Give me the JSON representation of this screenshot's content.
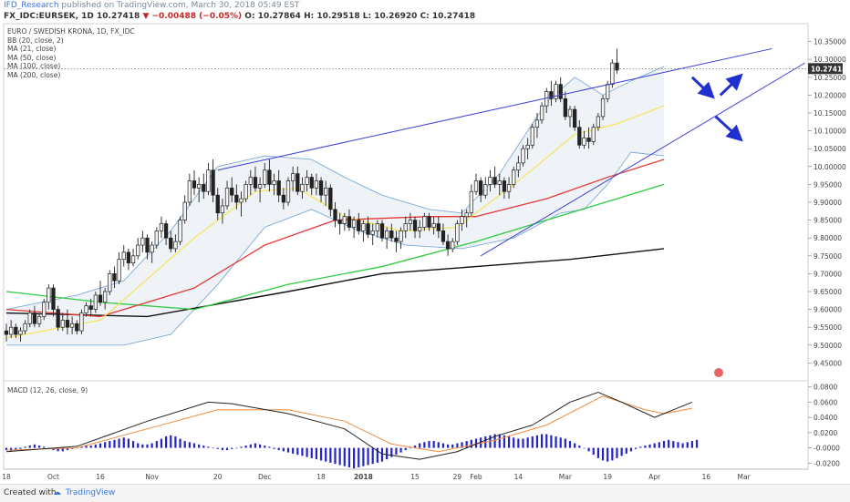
{
  "header": {
    "line1": {
      "user": "IFD_Research",
      "rest": "published on TradingView.com, March 30, 2018 05:49 EST"
    },
    "line2": {
      "symbol": "FX_IDC:EURSEK, 1D",
      "price": "10.27418",
      "change": "▼ −0.00488 (−0.05%)",
      "ohlc": "O: 10.27864  H: 10.29518  L: 10.26920  C: 10.27418"
    }
  },
  "legend": [
    "EURO / SWEDISH KRONA, 1D, FX_IDC",
    "BB (20, close, 2)",
    "MA (21, close)",
    "MA (50, close)",
    "MA (100, close)",
    "MA (200, close)"
  ],
  "macd_legend": "MACD (12, 26, close, 9)",
  "footer": {
    "created": "Created with",
    "brand": "TradingView"
  },
  "colors": {
    "up": "#f5f5f5",
    "down": "#222222",
    "bb": "#7eaad6",
    "ma21": "#f5e65b",
    "ma50": "#e53935",
    "ma100": "#2ecc40",
    "ma200": "#111111",
    "trend": "#3b3fd6",
    "arrow": "#1f2fd0",
    "macd": "#222222",
    "signal": "#f08c3c",
    "hist": "#2323c8"
  },
  "chart_data": {
    "type": "candlestick",
    "last_price": "10.27418",
    "y_axis": {
      "min": 9.4,
      "max": 10.4,
      "ticks": [
        "10.35000",
        "10.30000",
        "10.25000",
        "10.20000",
        "10.15000",
        "10.10000",
        "10.05000",
        "10.00000",
        "9.95000",
        "9.90000",
        "9.85000",
        "9.80000",
        "9.75000",
        "9.70000",
        "9.65000",
        "9.60000",
        "9.55000",
        "9.50000",
        "9.45000"
      ]
    },
    "macd_axis": {
      "min": -0.028,
      "max": 0.088,
      "ticks": [
        "0.0800",
        "0.0600",
        "0.0400",
        "0.0200",
        "-0.0000",
        "-0.0200"
      ]
    },
    "x_labels": [
      {
        "i": 0,
        "t": "18"
      },
      {
        "i": 10,
        "t": "Oct"
      },
      {
        "i": 20,
        "t": "16"
      },
      {
        "i": 31,
        "t": "Nov"
      },
      {
        "i": 45,
        "t": "20"
      },
      {
        "i": 55,
        "t": "Dec"
      },
      {
        "i": 67,
        "t": "18"
      },
      {
        "i": 76,
        "t": "2018"
      },
      {
        "i": 87,
        "t": "15"
      },
      {
        "i": 96,
        "t": "29"
      },
      {
        "i": 100,
        "t": "Feb"
      },
      {
        "i": 109,
        "t": "14"
      },
      {
        "i": 119,
        "t": "Mar"
      },
      {
        "i": 128,
        "t": "19"
      },
      {
        "i": 138,
        "t": "Apr"
      },
      {
        "i": 149,
        "t": "16"
      },
      {
        "i": 157,
        "t": "Mar"
      }
    ],
    "candles": [
      [
        9.54,
        9.56,
        9.51,
        9.53
      ],
      [
        9.53,
        9.57,
        9.52,
        9.55
      ],
      [
        9.55,
        9.56,
        9.52,
        9.53
      ],
      [
        9.53,
        9.55,
        9.51,
        9.54
      ],
      [
        9.54,
        9.57,
        9.53,
        9.56
      ],
      [
        9.56,
        9.6,
        9.55,
        9.59
      ],
      [
        9.59,
        9.61,
        9.55,
        9.56
      ],
      [
        9.56,
        9.59,
        9.55,
        9.58
      ],
      [
        9.58,
        9.63,
        9.57,
        9.62
      ],
      [
        9.62,
        9.67,
        9.6,
        9.66
      ],
      [
        9.66,
        9.67,
        9.58,
        9.6
      ],
      [
        9.6,
        9.61,
        9.54,
        9.55
      ],
      [
        9.55,
        9.59,
        9.54,
        9.57
      ],
      [
        9.57,
        9.6,
        9.53,
        9.55
      ],
      [
        9.55,
        9.58,
        9.53,
        9.56
      ],
      [
        9.56,
        9.57,
        9.53,
        9.54
      ],
      [
        9.54,
        9.6,
        9.53,
        9.59
      ],
      [
        9.59,
        9.62,
        9.58,
        9.61
      ],
      [
        9.61,
        9.63,
        9.58,
        9.6
      ],
      [
        9.6,
        9.65,
        9.59,
        9.64
      ],
      [
        9.64,
        9.68,
        9.61,
        9.62
      ],
      [
        9.62,
        9.66,
        9.6,
        9.65
      ],
      [
        9.65,
        9.71,
        9.64,
        9.7
      ],
      [
        9.7,
        9.72,
        9.66,
        9.68
      ],
      [
        9.68,
        9.76,
        9.67,
        9.74
      ],
      [
        9.74,
        9.78,
        9.72,
        9.76
      ],
      [
        9.76,
        9.77,
        9.71,
        9.73
      ],
      [
        9.73,
        9.77,
        9.72,
        9.75
      ],
      [
        9.75,
        9.8,
        9.74,
        9.78
      ],
      [
        9.78,
        9.82,
        9.76,
        9.8
      ],
      [
        9.8,
        9.81,
        9.74,
        9.76
      ],
      [
        9.76,
        9.79,
        9.73,
        9.78
      ],
      [
        9.78,
        9.83,
        9.77,
        9.82
      ],
      [
        9.82,
        9.86,
        9.8,
        9.84
      ],
      [
        9.84,
        9.85,
        9.78,
        9.8
      ],
      [
        9.8,
        9.82,
        9.76,
        9.77
      ],
      [
        9.77,
        9.81,
        9.76,
        9.79
      ],
      [
        9.79,
        9.86,
        9.78,
        9.85
      ],
      [
        9.85,
        9.92,
        9.84,
        9.9
      ],
      [
        9.9,
        9.98,
        9.89,
        9.96
      ],
      [
        9.96,
        9.99,
        9.92,
        9.94
      ],
      [
        9.94,
        9.97,
        9.9,
        9.95
      ],
      [
        9.95,
        9.98,
        9.91,
        9.93
      ],
      [
        9.93,
        10.01,
        9.92,
        9.99
      ],
      [
        9.99,
        10.02,
        9.9,
        9.92
      ],
      [
        9.92,
        9.94,
        9.85,
        9.87
      ],
      [
        9.87,
        9.91,
        9.84,
        9.89
      ],
      [
        9.89,
        9.96,
        9.88,
        9.94
      ],
      [
        9.94,
        9.97,
        9.9,
        9.92
      ],
      [
        9.92,
        9.95,
        9.88,
        9.9
      ],
      [
        9.9,
        9.93,
        9.86,
        9.91
      ],
      [
        9.91,
        9.96,
        9.9,
        9.95
      ],
      [
        9.95,
        9.99,
        9.92,
        9.97
      ],
      [
        9.97,
        10.0,
        9.93,
        9.94
      ],
      [
        9.94,
        9.97,
        9.9,
        9.95
      ],
      [
        9.95,
        10.01,
        9.94,
        9.99
      ],
      [
        9.99,
        10.02,
        9.93,
        9.95
      ],
      [
        9.95,
        9.98,
        9.92,
        9.96
      ],
      [
        9.96,
        9.99,
        9.9,
        9.92
      ],
      [
        9.92,
        9.94,
        9.88,
        9.9
      ],
      [
        9.9,
        9.97,
        9.89,
        9.96
      ],
      [
        9.96,
        10.0,
        9.93,
        9.98
      ],
      [
        9.98,
        10.0,
        9.92,
        9.93
      ],
      [
        9.93,
        9.97,
        9.91,
        9.95
      ],
      [
        9.95,
        9.99,
        9.93,
        9.97
      ],
      [
        9.97,
        9.98,
        9.92,
        9.94
      ],
      [
        9.94,
        9.98,
        9.92,
        9.96
      ],
      [
        9.96,
        9.97,
        9.9,
        9.92
      ],
      [
        9.92,
        9.96,
        9.89,
        9.94
      ],
      [
        9.94,
        9.95,
        9.86,
        9.88
      ],
      [
        9.88,
        9.9,
        9.83,
        9.85
      ],
      [
        9.85,
        9.87,
        9.81,
        9.84
      ],
      [
        9.84,
        9.87,
        9.82,
        9.86
      ],
      [
        9.86,
        9.88,
        9.82,
        9.83
      ],
      [
        9.83,
        9.86,
        9.8,
        9.85
      ],
      [
        9.85,
        9.87,
        9.81,
        9.82
      ],
      [
        9.82,
        9.85,
        9.79,
        9.84
      ],
      [
        9.84,
        9.86,
        9.8,
        9.81
      ],
      [
        9.81,
        9.84,
        9.78,
        9.82
      ],
      [
        9.82,
        9.85,
        9.8,
        9.84
      ],
      [
        9.84,
        9.85,
        9.79,
        9.8
      ],
      [
        9.8,
        9.83,
        9.77,
        9.82
      ],
      [
        9.82,
        9.84,
        9.79,
        9.8
      ],
      [
        9.8,
        9.82,
        9.76,
        9.79
      ],
      [
        9.79,
        9.83,
        9.77,
        9.82
      ],
      [
        9.82,
        9.86,
        9.8,
        9.84
      ],
      [
        9.84,
        9.87,
        9.82,
        9.85
      ],
      [
        9.85,
        9.86,
        9.8,
        9.82
      ],
      [
        9.82,
        9.85,
        9.8,
        9.83
      ],
      [
        9.83,
        9.87,
        9.82,
        9.86
      ],
      [
        9.86,
        9.87,
        9.82,
        9.83
      ],
      [
        9.83,
        9.86,
        9.81,
        9.84
      ],
      [
        9.84,
        9.86,
        9.8,
        9.82
      ],
      [
        9.82,
        9.84,
        9.78,
        9.79
      ],
      [
        9.79,
        9.81,
        9.75,
        9.77
      ],
      [
        9.77,
        9.8,
        9.76,
        9.79
      ],
      [
        9.79,
        9.85,
        9.78,
        9.84
      ],
      [
        9.84,
        9.88,
        9.82,
        9.86
      ],
      [
        9.86,
        9.88,
        9.83,
        9.87
      ],
      [
        9.87,
        9.95,
        9.86,
        9.93
      ],
      [
        9.93,
        9.98,
        9.92,
        9.96
      ],
      [
        9.96,
        9.97,
        9.9,
        9.92
      ],
      [
        9.92,
        9.97,
        9.91,
        9.95
      ],
      [
        9.95,
        9.99,
        9.93,
        9.97
      ],
      [
        9.97,
        10.0,
        9.94,
        9.95
      ],
      [
        9.95,
        9.98,
        9.92,
        9.96
      ],
      [
        9.96,
        9.97,
        9.91,
        9.93
      ],
      [
        9.93,
        9.97,
        9.91,
        9.95
      ],
      [
        9.95,
        10.0,
        9.94,
        9.99
      ],
      [
        9.99,
        10.03,
        9.97,
        10.01
      ],
      [
        10.01,
        10.06,
        10.0,
        10.05
      ],
      [
        10.05,
        10.08,
        10.02,
        10.06
      ],
      [
        10.06,
        10.12,
        10.05,
        10.11
      ],
      [
        10.11,
        10.15,
        10.08,
        10.13
      ],
      [
        10.13,
        10.18,
        10.12,
        10.17
      ],
      [
        10.17,
        10.22,
        10.15,
        10.21
      ],
      [
        10.21,
        10.24,
        10.17,
        10.19
      ],
      [
        10.19,
        10.24,
        10.18,
        10.23
      ],
      [
        10.23,
        10.25,
        10.18,
        10.19
      ],
      [
        10.19,
        10.21,
        10.13,
        10.14
      ],
      [
        10.14,
        10.17,
        10.11,
        10.16
      ],
      [
        10.16,
        10.17,
        10.1,
        10.11
      ],
      [
        10.11,
        10.13,
        10.05,
        10.06
      ],
      [
        10.06,
        10.1,
        10.05,
        10.08
      ],
      [
        10.08,
        10.11,
        10.05,
        10.07
      ],
      [
        10.07,
        10.12,
        10.06,
        10.11
      ],
      [
        10.11,
        10.15,
        10.1,
        10.14
      ],
      [
        10.14,
        10.2,
        10.13,
        10.19
      ],
      [
        10.19,
        10.24,
        10.18,
        10.23
      ],
      [
        10.23,
        10.3,
        10.22,
        10.29
      ],
      [
        10.29,
        10.33,
        10.26,
        10.27
      ]
    ],
    "ma21": [
      [
        0,
        9.52
      ],
      [
        20,
        9.57
      ],
      [
        40,
        9.8
      ],
      [
        53,
        9.93
      ],
      [
        62,
        9.94
      ],
      [
        72,
        9.86
      ],
      [
        84,
        9.82
      ],
      [
        96,
        9.83
      ],
      [
        110,
        9.97
      ],
      [
        121,
        10.09
      ],
      [
        130,
        10.12
      ],
      [
        140,
        10.17
      ]
    ],
    "ma50": [
      [
        0,
        9.6
      ],
      [
        20,
        9.58
      ],
      [
        40,
        9.66
      ],
      [
        55,
        9.78
      ],
      [
        70,
        9.85
      ],
      [
        90,
        9.86
      ],
      [
        100,
        9.86
      ],
      [
        115,
        9.91
      ],
      [
        128,
        9.97
      ],
      [
        140,
        10.02
      ]
    ],
    "ma100": [
      [
        0,
        9.65
      ],
      [
        20,
        9.62
      ],
      [
        40,
        9.6
      ],
      [
        60,
        9.67
      ],
      [
        80,
        9.72
      ],
      [
        100,
        9.79
      ],
      [
        115,
        9.85
      ],
      [
        130,
        9.91
      ],
      [
        140,
        9.95
      ]
    ],
    "ma200": [
      [
        0,
        9.59
      ],
      [
        30,
        9.58
      ],
      [
        60,
        9.65
      ],
      [
        80,
        9.7
      ],
      [
        100,
        9.72
      ],
      [
        120,
        9.74
      ],
      [
        140,
        9.77
      ]
    ],
    "bb_upper": [
      [
        0,
        9.6
      ],
      [
        15,
        9.64
      ],
      [
        25,
        9.68
      ],
      [
        35,
        9.82
      ],
      [
        45,
        10.0
      ],
      [
        55,
        10.03
      ],
      [
        65,
        10.02
      ],
      [
        72,
        9.97
      ],
      [
        80,
        9.92
      ],
      [
        90,
        9.88
      ],
      [
        97,
        9.87
      ],
      [
        105,
        9.98
      ],
      [
        115,
        10.18
      ],
      [
        121,
        10.25
      ],
      [
        127,
        10.2
      ],
      [
        133,
        10.24
      ],
      [
        140,
        10.28
      ]
    ],
    "bb_lower": [
      [
        0,
        9.5
      ],
      [
        15,
        9.5
      ],
      [
        25,
        9.5
      ],
      [
        35,
        9.53
      ],
      [
        45,
        9.67
      ],
      [
        55,
        9.83
      ],
      [
        65,
        9.88
      ],
      [
        75,
        9.82
      ],
      [
        85,
        9.78
      ],
      [
        97,
        9.77
      ],
      [
        108,
        9.8
      ],
      [
        118,
        9.87
      ],
      [
        123,
        9.88
      ],
      [
        128,
        9.95
      ],
      [
        133,
        10.04
      ],
      [
        140,
        10.03
      ]
    ],
    "trendlines": [
      [
        [
          45,
          9.99
        ],
        [
          163,
          10.33
        ]
      ],
      [
        [
          101,
          9.75
        ],
        [
          170,
          10.29
        ]
      ]
    ],
    "arrows": [
      {
        "from": [
          146,
          10.25
        ],
        "to": [
          150,
          10.2
        ]
      },
      {
        "from": [
          152,
          10.2
        ],
        "to": [
          156,
          10.25
        ]
      },
      {
        "from": [
          151,
          10.14
        ],
        "to": [
          156,
          10.08
        ]
      }
    ],
    "macd": [
      [
        0,
        -0.005
      ],
      [
        15,
        0.002
      ],
      [
        30,
        0.035
      ],
      [
        43,
        0.06
      ],
      [
        48,
        0.058
      ],
      [
        60,
        0.045
      ],
      [
        72,
        0.025
      ],
      [
        80,
        -0.008
      ],
      [
        88,
        -0.015
      ],
      [
        96,
        -0.005
      ],
      [
        104,
        0.015
      ],
      [
        112,
        0.03
      ],
      [
        120,
        0.06
      ],
      [
        126,
        0.073
      ],
      [
        131,
        0.06
      ],
      [
        138,
        0.04
      ],
      [
        142,
        0.05
      ],
      [
        146,
        0.06
      ]
    ],
    "signal": [
      [
        0,
        -0.003
      ],
      [
        15,
        0.0
      ],
      [
        30,
        0.025
      ],
      [
        45,
        0.05
      ],
      [
        60,
        0.05
      ],
      [
        72,
        0.035
      ],
      [
        82,
        0.005
      ],
      [
        92,
        -0.005
      ],
      [
        104,
        0.01
      ],
      [
        115,
        0.03
      ],
      [
        127,
        0.068
      ],
      [
        136,
        0.05
      ],
      [
        140,
        0.045
      ],
      [
        146,
        0.052
      ]
    ],
    "histogram": [
      -0.002,
      -0.003,
      -0.002,
      -0.001,
      0.001,
      0.002,
      0.003,
      0.002,
      0.001,
      -0.001,
      -0.002,
      -0.003,
      -0.003,
      -0.002,
      -0.001,
      0.0,
      0.001,
      0.002,
      0.002,
      0.003,
      0.004,
      0.005,
      0.006,
      0.007,
      0.008,
      0.009,
      0.008,
      0.006,
      0.004,
      0.003,
      0.003,
      0.004,
      0.006,
      0.008,
      0.01,
      0.011,
      0.01,
      0.008,
      0.006,
      0.005,
      0.004,
      0.003,
      0.002,
      0.001,
      0.0,
      -0.001,
      -0.002,
      -0.002,
      -0.001,
      0.0,
      0.001,
      0.002,
      0.003,
      0.004,
      0.003,
      0.002,
      0.001,
      -0.001,
      -0.002,
      -0.003,
      -0.004,
      -0.005,
      -0.006,
      -0.007,
      -0.008,
      -0.009,
      -0.01,
      -0.011,
      -0.012,
      -0.013,
      -0.014,
      -0.015,
      -0.016,
      -0.017,
      -0.018,
      -0.017,
      -0.016,
      -0.015,
      -0.014,
      -0.013,
      -0.012,
      -0.01,
      -0.008,
      -0.006,
      -0.004,
      -0.002,
      0.0,
      0.002,
      0.004,
      0.005,
      0.006,
      0.006,
      0.005,
      0.004,
      0.003,
      0.003,
      0.004,
      0.005,
      0.006,
      0.007,
      0.008,
      0.009,
      0.01,
      0.011,
      0.012,
      0.012,
      0.011,
      0.01,
      0.009,
      0.008,
      0.008,
      0.009,
      0.01,
      0.011,
      0.012,
      0.012,
      0.011,
      0.01,
      0.009,
      0.008,
      0.006,
      0.004,
      0.002,
      0.0,
      -0.003,
      -0.006,
      -0.009,
      -0.011,
      -0.012,
      -0.011,
      -0.009,
      -0.007,
      -0.005,
      -0.003,
      -0.001,
      0.001,
      0.002,
      0.003,
      0.004,
      0.005,
      0.006,
      0.007,
      0.006,
      0.005,
      0.004,
      0.005,
      0.006,
      0.007
    ]
  }
}
